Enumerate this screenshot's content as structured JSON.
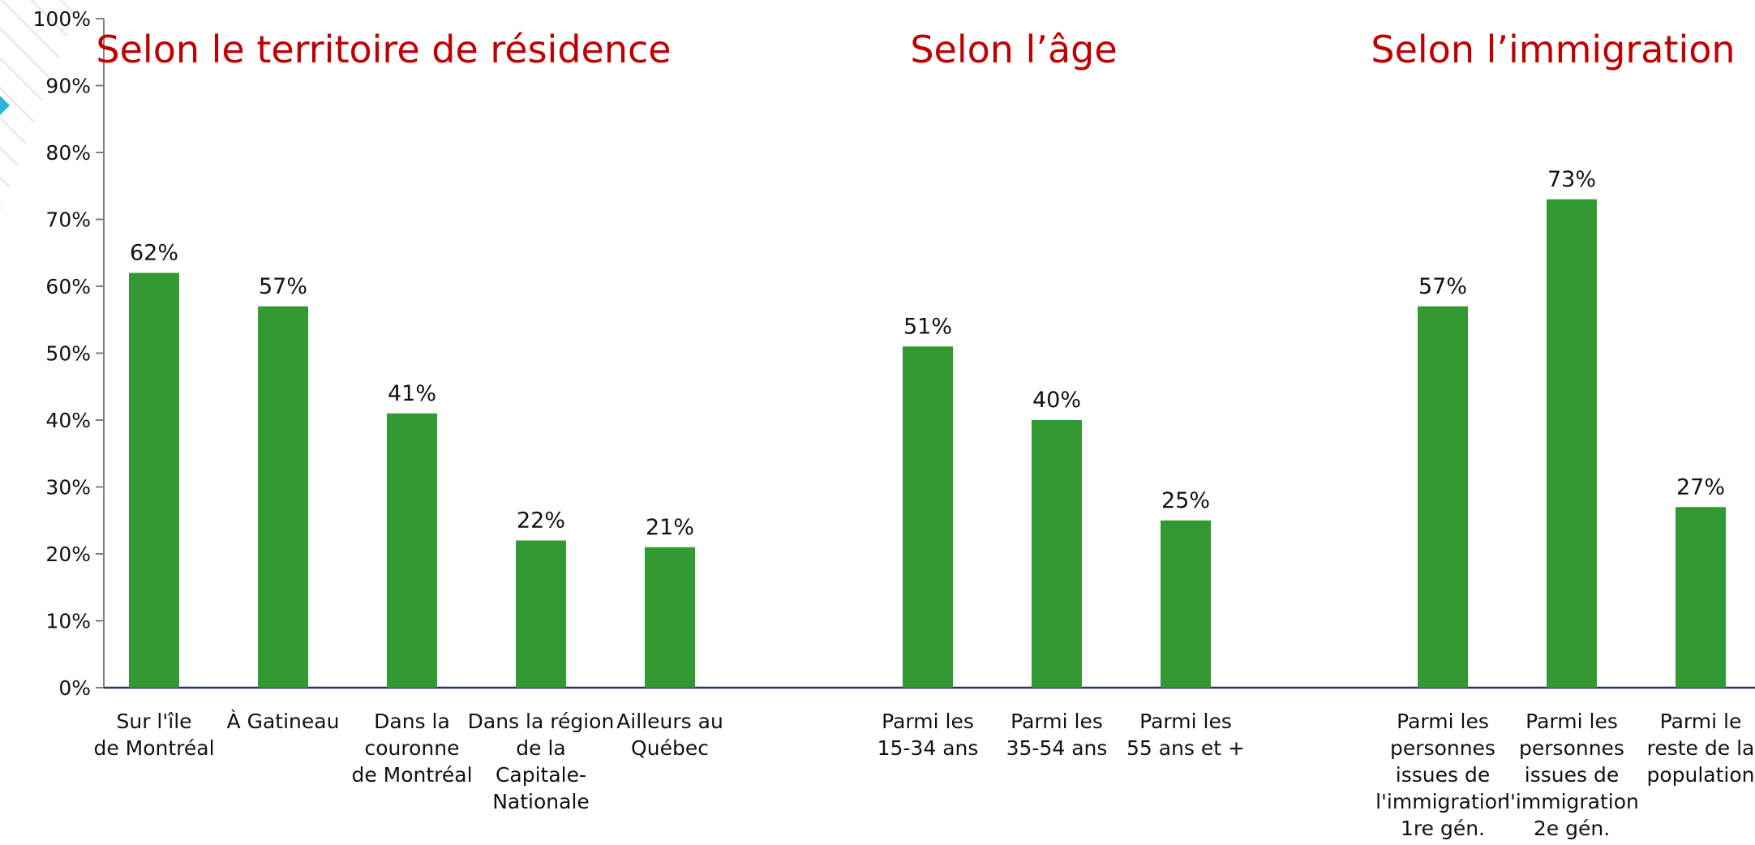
{
  "chart_data": {
    "type": "bar",
    "ylim": [
      0,
      100
    ],
    "y_ticks": [
      "0%",
      "10%",
      "20%",
      "30%",
      "40%",
      "50%",
      "60%",
      "70%",
      "80%",
      "90%",
      "100%"
    ],
    "grid": false,
    "bar_color": "#339933",
    "title_color": "#c00000",
    "groups": [
      {
        "title": "Selon le territoire de résidence",
        "bars": [
          {
            "label": [
              "Sur l'île",
              "de Montréal"
            ],
            "value": 62,
            "value_label": "62%"
          },
          {
            "label": [
              "À Gatineau"
            ],
            "value": 57,
            "value_label": "57%"
          },
          {
            "label": [
              "Dans la",
              "couronne",
              "de Montréal"
            ],
            "value": 41,
            "value_label": "41%"
          },
          {
            "label": [
              "Dans la région",
              "de la",
              "Capitale-",
              "Nationale"
            ],
            "value": 22,
            "value_label": "22%"
          },
          {
            "label": [
              "Ailleurs au",
              "Québec"
            ],
            "value": 21,
            "value_label": "21%"
          }
        ]
      },
      {
        "title": "Selon l’âge",
        "bars": [
          {
            "label": [
              "Parmi les",
              "15-34 ans"
            ],
            "value": 51,
            "value_label": "51%"
          },
          {
            "label": [
              "Parmi les",
              "35-54 ans"
            ],
            "value": 40,
            "value_label": "40%"
          },
          {
            "label": [
              "Parmi les",
              "55 ans et +"
            ],
            "value": 25,
            "value_label": "25%"
          }
        ]
      },
      {
        "title": "Selon l’immigration",
        "bars": [
          {
            "label": [
              "Parmi les",
              "personnes",
              "issues de",
              "l'immigration",
              "1re gén."
            ],
            "value": 57,
            "value_label": "57%"
          },
          {
            "label": [
              "Parmi les",
              "personnes",
              "issues de",
              "l'immigration",
              "2e gén."
            ],
            "value": 73,
            "value_label": "73%"
          },
          {
            "label": [
              "Parmi le",
              "reste de la",
              "population"
            ],
            "value": 27,
            "value_label": "27%"
          }
        ]
      }
    ]
  }
}
